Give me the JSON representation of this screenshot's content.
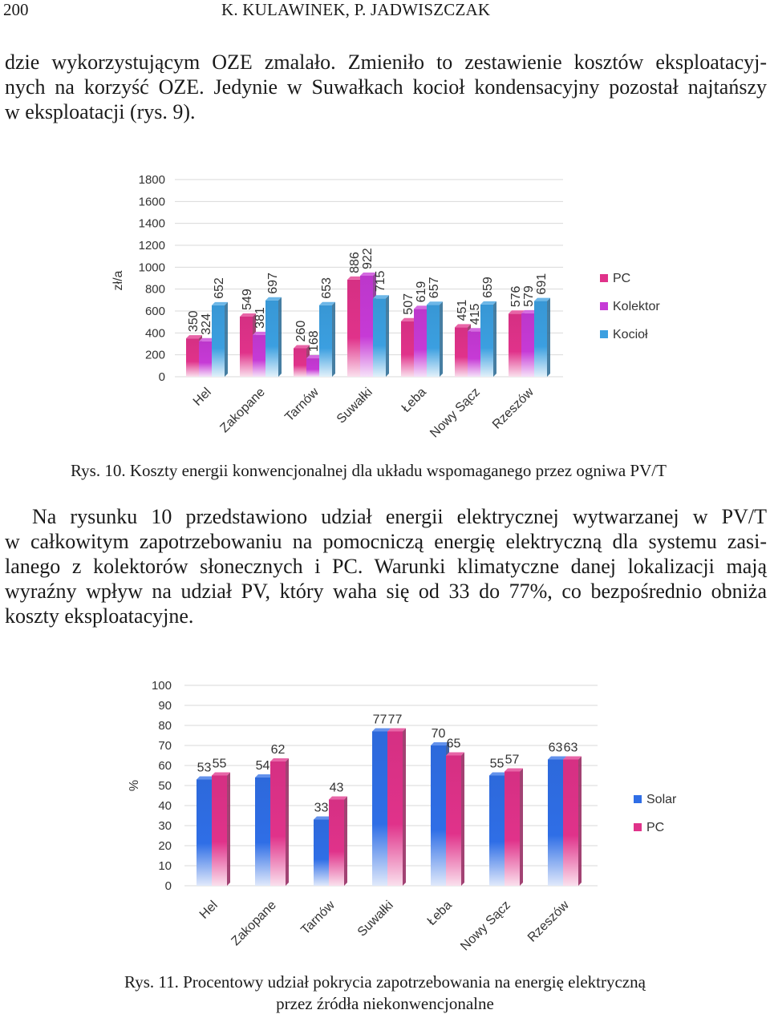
{
  "header": {
    "page_number": "200",
    "authors": "K. KULAWINEK, P. JADWISZCZAK"
  },
  "paragraph1": [
    "dzie wykorzystującym OZE zmalało. Zmieniło to zestawienie kosztów eksploatacyj-",
    "nych na korzyść OZE. Jedynie w Suwałkach kocioł kondensacyjny pozostał najtańszy",
    "w eksploatacji (rys. 9)."
  ],
  "figure10_caption": "Rys. 10. Koszty energii konwencjonalnej dla układu wspomaganego przez ogniwa PV/T",
  "paragraph2": [
    "Na rysunku 10 przedstawiono udział energii elektrycznej wytwarzanej w PV/T",
    "w całkowitym zapotrzebowaniu na pomocniczą energię elektryczną dla systemu zasi-",
    "lanego z kolektorów słonecznych i PC. Warunki klimatyczne danej lokalizacji mają",
    "wyraźny wpływ na udział PV, który waha się od 33 do 77%, co bezpośrednio obniża",
    "koszty eksploatacyjne."
  ],
  "figure11_caption_line1": "Rys. 11. Procentowy udział pokrycia zapotrzebowania na energię elektryczną",
  "figure11_caption_line2": "przez źródła niekonwencjonalne",
  "chart_data": [
    {
      "type": "bar",
      "categories": [
        "Hel",
        "Zakopane",
        "Tarnów",
        "Suwałki",
        "Łeba",
        "Nowy Sącz",
        "Rzeszów"
      ],
      "series": [
        {
          "name": "PC",
          "values": [
            350,
            549,
            260,
            886,
            507,
            451,
            576
          ],
          "color": "#e0328a"
        },
        {
          "name": "Kolektor",
          "values": [
            324,
            381,
            168,
            922,
            619,
            415,
            579
          ],
          "color": "#c63ad6"
        },
        {
          "name": "Kocioł",
          "values": [
            652,
            697,
            653,
            715,
            657,
            659,
            691
          ],
          "color": "#3b9fe0"
        }
      ],
      "ylabel": "zł/a",
      "ylim": [
        0,
        1800
      ],
      "yticks": [
        0,
        200,
        400,
        600,
        800,
        1000,
        1200,
        1400,
        1600,
        1800
      ],
      "grid": true,
      "legend": "right"
    },
    {
      "type": "bar",
      "categories": [
        "Hel",
        "Zakopane",
        "Tarnów",
        "Suwałki",
        "Łeba",
        "Nowy Sącz",
        "Rzeszów"
      ],
      "series": [
        {
          "name": "Solar",
          "values": [
            53,
            54,
            33,
            77,
            70,
            55,
            63
          ],
          "color": "#2f6ee6"
        },
        {
          "name": "PC",
          "values": [
            55,
            62,
            43,
            77,
            65,
            57,
            63
          ],
          "color": "#e0328a"
        }
      ],
      "ylabel": "%",
      "ylim": [
        0,
        100
      ],
      "yticks": [
        0,
        10,
        20,
        30,
        40,
        50,
        60,
        70,
        80,
        90,
        100
      ],
      "grid": true,
      "legend": "right"
    }
  ]
}
